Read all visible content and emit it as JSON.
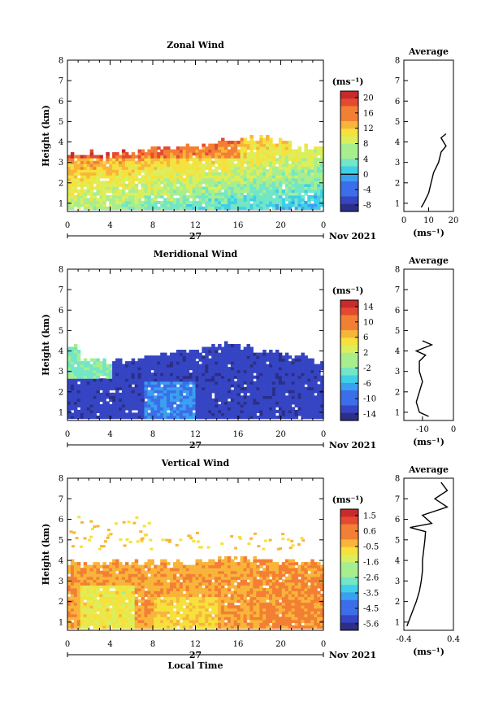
{
  "figure": {
    "xlabel": "Local Time",
    "date_label": "Nov 2021",
    "day_label": "27",
    "x_ticks": [
      "0",
      "4",
      "8",
      "12",
      "16",
      "20",
      "0"
    ]
  },
  "chart_data": [
    {
      "type": "heatmap",
      "title": "Zonal Wind",
      "ylabel": "Height (km)",
      "unit": "(ms⁻¹)",
      "xlim": [
        0,
        24
      ],
      "ylim": [
        0.6,
        8
      ],
      "y_ticks": [
        "1",
        "2",
        "3",
        "4",
        "5",
        "6",
        "7",
        "8"
      ],
      "colorbar": {
        "ticks": [
          "20",
          "16",
          "12",
          "8",
          "4",
          "0",
          "-4",
          "-8"
        ],
        "vmin": -10,
        "vmax": 22,
        "line_at": "0"
      },
      "top_height_km": [
        3.3,
        3.4,
        3.4,
        3.3,
        3.4,
        3.5,
        3.5,
        3.6,
        3.6,
        3.7,
        3.7,
        3.8,
        3.8,
        3.9,
        4.0,
        4.0,
        4.1,
        4.1,
        4.2,
        4.0,
        4.0,
        3.6,
        3.7,
        3.6,
        3.5
      ],
      "field_description_values": {
        "low_level": 10,
        "upper_level": 20,
        "late_day": 6
      },
      "profile": {
        "title": "Average",
        "xlim": [
          0,
          20
        ],
        "x_ticks": [
          "0",
          "10",
          "20"
        ],
        "xlabel": "(ms⁻¹)",
        "height_km": [
          0.8,
          1.0,
          1.5,
          2.0,
          2.5,
          3.0,
          3.5,
          3.8,
          4.0,
          4.2,
          4.4
        ],
        "value": [
          7,
          8,
          10,
          11,
          12,
          14,
          15,
          17,
          16,
          15,
          17
        ]
      }
    },
    {
      "type": "heatmap",
      "title": "Meridional Wind",
      "ylabel": "Height (km)",
      "unit": "(ms⁻¹)",
      "xlim": [
        0,
        24
      ],
      "ylim": [
        0.6,
        8
      ],
      "y_ticks": [
        "1",
        "2",
        "3",
        "4",
        "5",
        "6",
        "7",
        "8"
      ],
      "colorbar": {
        "ticks": [
          "14",
          "10",
          "6",
          "2",
          "-2",
          "-6",
          "-10",
          "-14"
        ],
        "vmin": -16,
        "vmax": 16,
        "line_at": "0"
      },
      "top_height_km": [
        4.2,
        3.5,
        3.5,
        3.4,
        3.5,
        3.4,
        3.5,
        3.6,
        3.7,
        3.8,
        3.9,
        3.9,
        4.0,
        4.1,
        4.3,
        4.2,
        4.1,
        4.0,
        4.0,
        3.9,
        3.8,
        3.7,
        3.6,
        3.4,
        3.5
      ],
      "profile": {
        "title": "Average",
        "xlim": [
          -16,
          0
        ],
        "x_ticks": [
          "-10",
          "0"
        ],
        "xlabel": "(ms⁻¹)",
        "height_km": [
          0.8,
          1.0,
          1.5,
          2.0,
          2.5,
          3.0,
          3.5,
          3.8,
          4.0,
          4.3,
          4.5
        ],
        "value": [
          -8,
          -11,
          -12,
          -11,
          -10,
          -11,
          -11,
          -9,
          -12,
          -7,
          -10
        ]
      }
    },
    {
      "type": "heatmap",
      "title": "Vertical Wind",
      "ylabel": "Height (km)",
      "unit": "(ms⁻¹)",
      "xlim": [
        0,
        24
      ],
      "ylim": [
        0.6,
        8
      ],
      "y_ticks": [
        "1",
        "2",
        "3",
        "4",
        "5",
        "6",
        "7",
        "8"
      ],
      "colorbar": {
        "ticks": [
          "1.5",
          "0.6",
          "-0.5",
          "-1.6",
          "-2.6",
          "-3.5",
          "-4.5",
          "-5.6"
        ],
        "vmin": -6,
        "vmax": 2,
        "line_at": ""
      },
      "top_height_km": [
        3.8,
        3.8,
        3.8,
        3.8,
        3.8,
        3.8,
        3.8,
        3.9,
        3.9,
        3.9,
        3.9,
        3.9,
        4.0,
        4.0,
        4.0,
        4.0,
        4.0,
        4.0,
        4.0,
        3.9,
        3.9,
        3.8,
        3.8,
        3.8,
        3.8
      ],
      "profile": {
        "title": "Average",
        "xlim": [
          -0.4,
          0.4
        ],
        "x_ticks": [
          "-0.4",
          "0.4"
        ],
        "xlabel": "(ms⁻¹)",
        "height_km": [
          0.8,
          1.2,
          1.6,
          2.0,
          2.5,
          3.0,
          3.5,
          4.0,
          4.5,
          5.0,
          5.4,
          5.6,
          5.8,
          6.2,
          6.6,
          7.0,
          7.4,
          7.8
        ],
        "value": [
          -0.35,
          -0.3,
          -0.25,
          -0.2,
          -0.15,
          -0.12,
          -0.1,
          -0.1,
          -0.08,
          -0.06,
          -0.05,
          -0.3,
          0.05,
          -0.1,
          0.3,
          0.1,
          0.3,
          0.2
        ]
      }
    }
  ]
}
